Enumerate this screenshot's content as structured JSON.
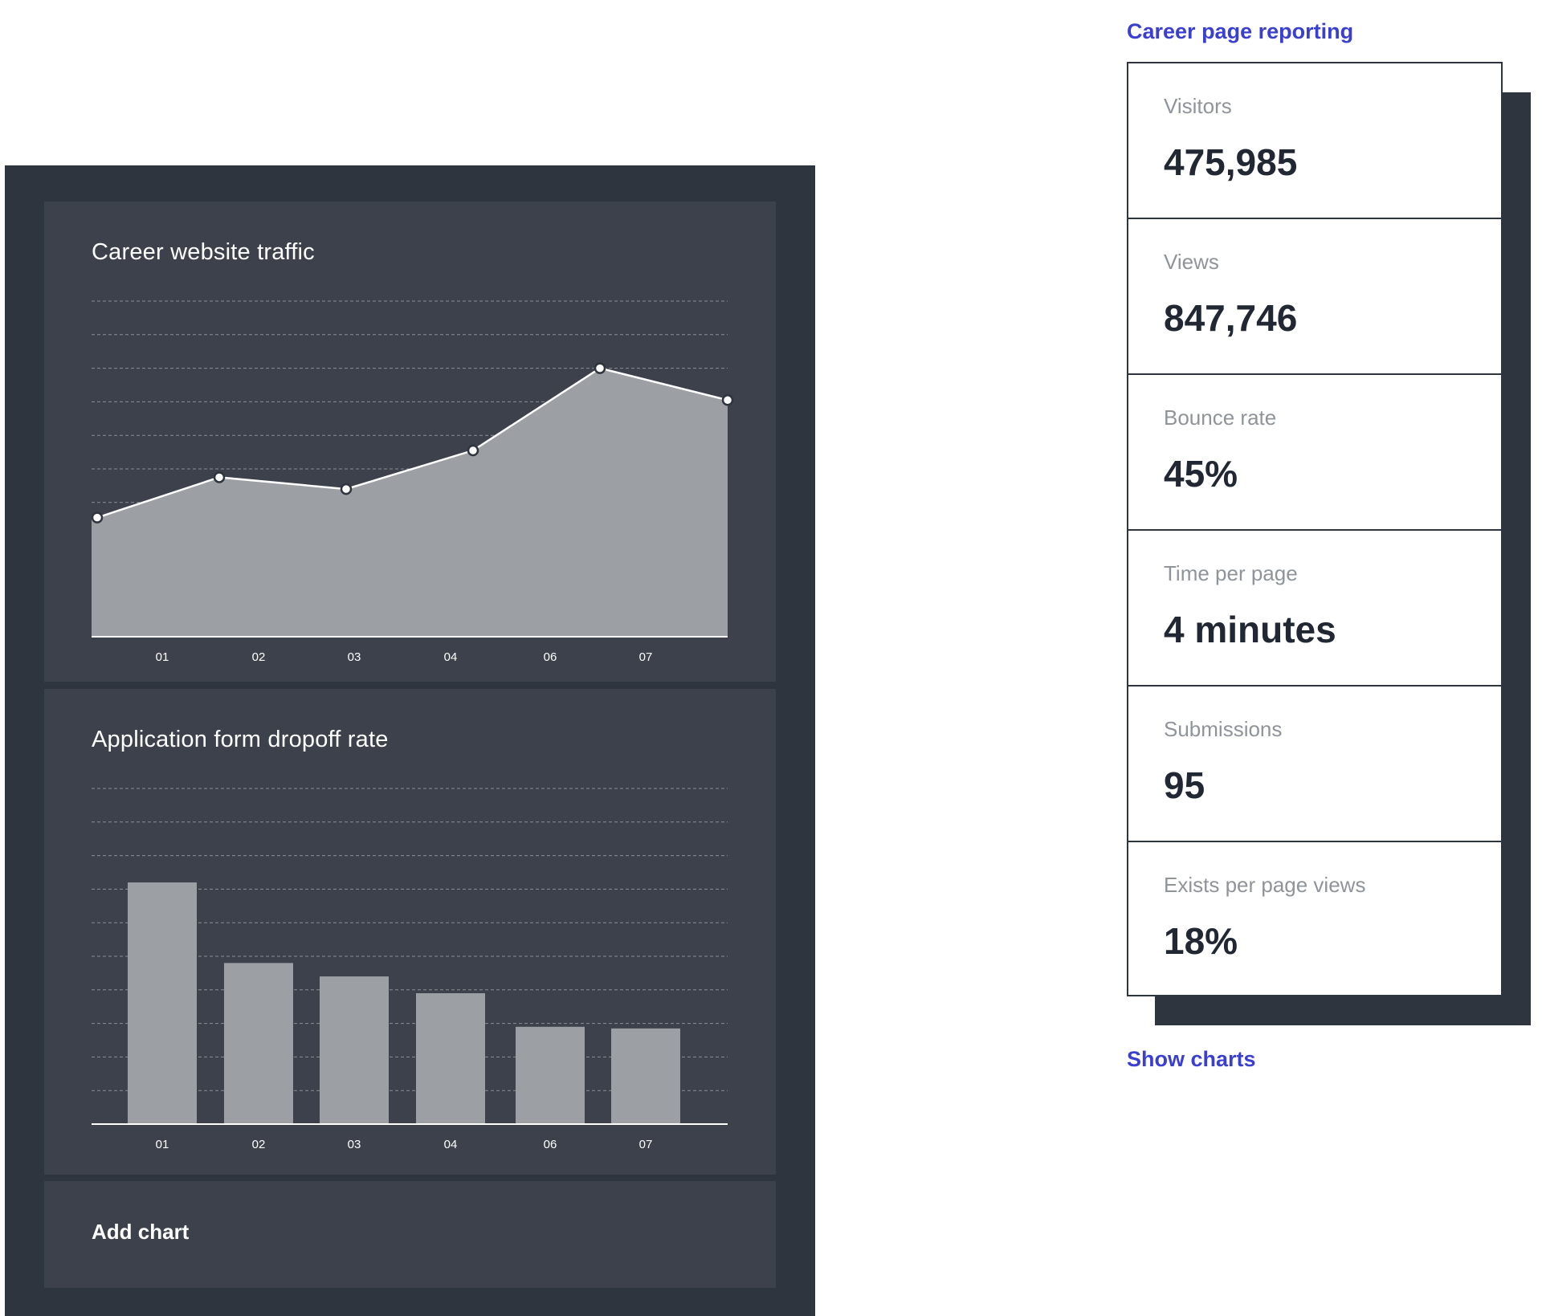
{
  "charts": {
    "traffic": {
      "title": "Career website traffic"
    },
    "dropoff": {
      "title": "Application form dropoff rate"
    },
    "add_chart_label": "Add chart"
  },
  "chart_data": [
    {
      "type": "area",
      "title": "Career website traffic",
      "categories": [
        "01",
        "02",
        "03",
        "04",
        "06",
        "07"
      ],
      "x": [
        1,
        2,
        3,
        4,
        5,
        6,
        7
      ],
      "values": [
        3.55,
        4.75,
        4.4,
        5.55,
        8.0,
        8.0,
        7.05
      ],
      "ylim": [
        0,
        10
      ],
      "grid": true,
      "colors": {
        "fill": "#9c9fa4",
        "line": "#ffffff",
        "grid": "#8a8e96"
      }
    },
    {
      "type": "bar",
      "title": "Application form dropoff rate",
      "categories": [
        "01",
        "02",
        "03",
        "04",
        "06",
        "07"
      ],
      "values": [
        7.2,
        4.8,
        4.4,
        3.9,
        2.9,
        2.85
      ],
      "ylim": [
        0,
        10
      ],
      "grid": true,
      "colors": {
        "bar": "#9c9fa4",
        "grid": "#8a8e96"
      }
    }
  ],
  "report": {
    "heading": "Career page reporting",
    "metrics": [
      {
        "label": "Visitors",
        "value": "475,985"
      },
      {
        "label": "Views",
        "value": "847,746"
      },
      {
        "label": "Bounce rate",
        "value": "45%"
      },
      {
        "label": "Time per page",
        "value": "4 minutes"
      },
      {
        "label": "Submissions",
        "value": "95"
      },
      {
        "label": "Exists per page views",
        "value": "18%"
      }
    ],
    "show_charts_label": "Show charts"
  },
  "colors": {
    "panel_bg": "#2f353f",
    "card_bg": "#3c414b",
    "accent_link": "#3a3fcf",
    "metric_label": "#8f949b",
    "metric_value": "#222833"
  }
}
